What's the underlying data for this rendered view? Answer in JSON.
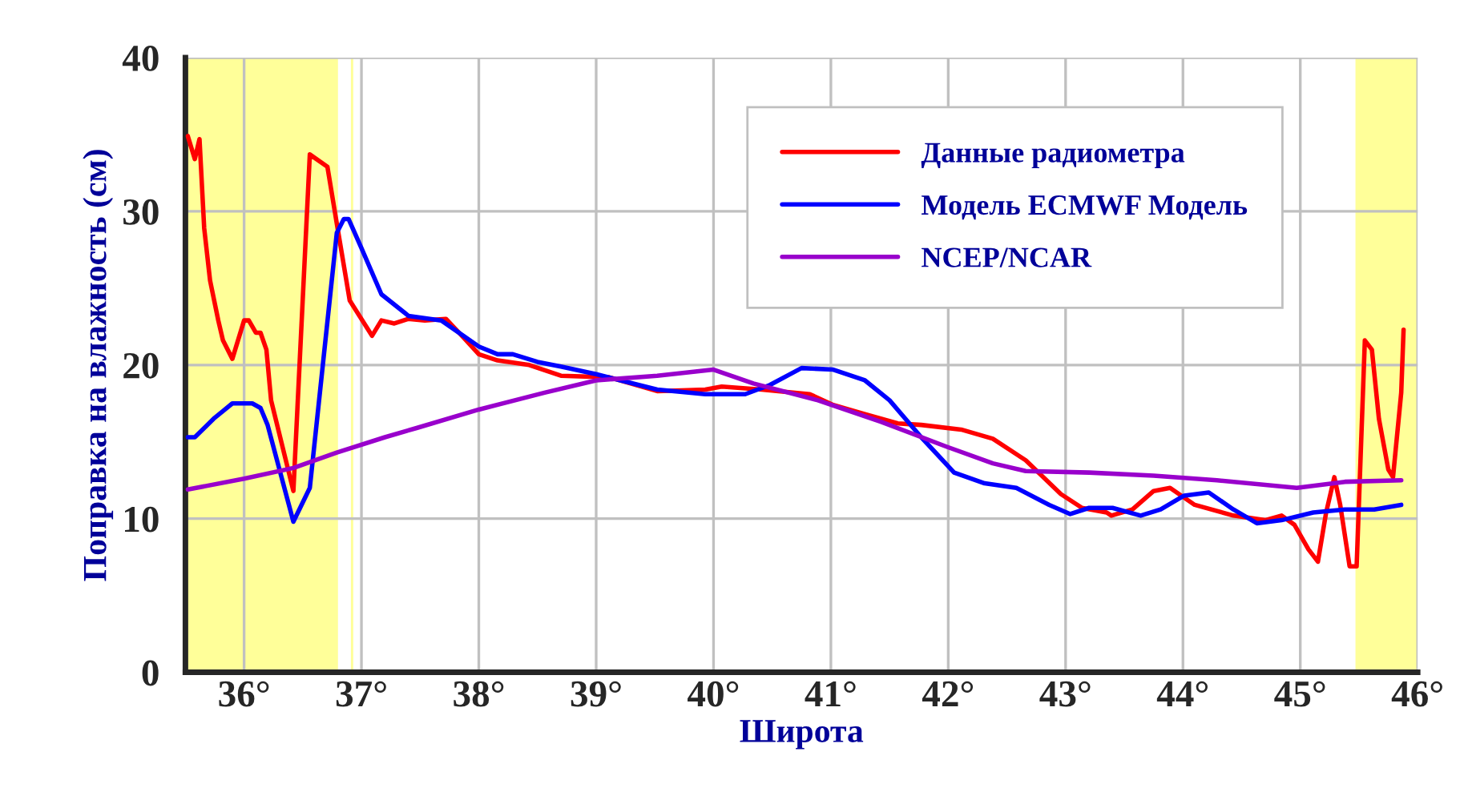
{
  "chart_data": {
    "type": "line",
    "xlabel": "Широта",
    "ylabel": "Поправка на влажность (см)",
    "xlim": [
      35.5,
      46
    ],
    "ylim": [
      0,
      40
    ],
    "xticks": [
      {
        "value": 36,
        "label": "36°"
      },
      {
        "value": 37,
        "label": "37°"
      },
      {
        "value": 38,
        "label": "38°"
      },
      {
        "value": 39,
        "label": "39°"
      },
      {
        "value": 40,
        "label": "40°"
      },
      {
        "value": 41,
        "label": "41°"
      },
      {
        "value": 42,
        "label": "42°"
      },
      {
        "value": 43,
        "label": "43°"
      },
      {
        "value": 44,
        "label": "44°"
      },
      {
        "value": 45,
        "label": "45°"
      },
      {
        "value": 46,
        "label": "46°"
      }
    ],
    "yticks": [
      0,
      10,
      20,
      30,
      40
    ],
    "grid": true,
    "legend": "top right",
    "marker": "none",
    "line_style": "solid",
    "bands": [
      {
        "axis": "x",
        "from": 35.5,
        "to": 36.8,
        "label": null,
        "color": "#ffff99"
      },
      {
        "axis": "x",
        "from": 36.91,
        "to": 36.93,
        "label": null,
        "color": "#ffff99"
      },
      {
        "axis": "x",
        "from": 45.47,
        "to": 46,
        "label": null,
        "color": "#ffff99"
      }
    ],
    "series": [
      {
        "name": "Данные радиометра",
        "color": "#ff0000",
        "x": [
          35.52,
          35.58,
          35.62,
          35.66,
          35.71,
          35.78,
          35.82,
          35.9,
          36.0,
          36.04,
          36.1,
          36.14,
          36.19,
          36.23,
          36.42,
          36.56,
          36.71,
          36.79,
          36.9,
          37.09,
          37.17,
          37.28,
          37.4,
          37.54,
          37.72,
          37.88,
          38.0,
          38.16,
          38.43,
          38.7,
          39.11,
          39.52,
          39.93,
          40.07,
          40.41,
          40.82,
          41.02,
          41.29,
          41.57,
          41.77,
          42.11,
          42.38,
          42.66,
          42.96,
          43.14,
          43.35,
          43.39,
          43.57,
          43.75,
          43.89,
          44.1,
          44.43,
          44.7,
          44.84,
          44.95,
          45.07,
          45.15,
          45.22,
          45.29,
          45.34,
          45.42,
          45.48,
          45.55,
          45.61,
          45.67,
          45.75,
          45.79,
          45.86,
          45.88
        ],
        "values": [
          34.9,
          33.4,
          34.7,
          28.9,
          25.5,
          22.9,
          21.6,
          20.4,
          22.9,
          22.9,
          22.1,
          22.1,
          21.0,
          17.7,
          11.8,
          33.7,
          32.9,
          29.2,
          24.2,
          21.9,
          22.9,
          22.7,
          23.0,
          22.9,
          23.0,
          21.7,
          20.7,
          20.3,
          20.0,
          19.3,
          19.2,
          18.3,
          18.4,
          18.6,
          18.4,
          18.1,
          17.4,
          16.8,
          16.2,
          16.1,
          15.8,
          15.2,
          13.8,
          11.6,
          10.7,
          10.4,
          10.2,
          10.6,
          11.8,
          12.0,
          10.9,
          10.2,
          9.9,
          10.2,
          9.6,
          8.0,
          7.2,
          10.4,
          12.7,
          10.9,
          6.9,
          6.9,
          21.6,
          21.0,
          16.5,
          13.2,
          12.7,
          18.2,
          22.3
        ]
      },
      {
        "name": "Модель ECMWF Модель",
        "color": "#0000ff",
        "x": [
          35.52,
          35.58,
          35.74,
          35.9,
          36.07,
          36.14,
          36.2,
          36.42,
          36.56,
          36.79,
          36.85,
          36.89,
          37.0,
          37.17,
          37.4,
          37.68,
          38.0,
          38.16,
          38.29,
          38.5,
          38.7,
          39.0,
          39.52,
          39.93,
          40.27,
          40.48,
          40.75,
          41.02,
          41.29,
          41.5,
          41.77,
          42.05,
          42.31,
          42.58,
          42.86,
          43.04,
          43.2,
          43.4,
          43.64,
          43.81,
          44.01,
          44.22,
          44.43,
          44.63,
          44.84,
          45.11,
          45.38,
          45.63,
          45.86
        ],
        "values": [
          15.3,
          15.3,
          16.5,
          17.5,
          17.5,
          17.2,
          16.1,
          9.8,
          12.0,
          28.6,
          29.5,
          29.5,
          27.6,
          24.6,
          23.2,
          22.9,
          21.2,
          20.7,
          20.7,
          20.2,
          19.9,
          19.4,
          18.4,
          18.1,
          18.1,
          18.7,
          19.8,
          19.7,
          19.0,
          17.7,
          15.3,
          13.0,
          12.3,
          12.0,
          10.9,
          10.3,
          10.7,
          10.7,
          10.2,
          10.6,
          11.5,
          11.7,
          10.6,
          9.7,
          9.9,
          10.4,
          10.6,
          10.6,
          10.9
        ]
      },
      {
        "name": "NCEP/NCAR",
        "color": "#9900cc",
        "x": [
          35.52,
          36.0,
          36.42,
          36.79,
          37.2,
          37.47,
          38.0,
          38.56,
          39.0,
          39.52,
          40.0,
          40.34,
          40.89,
          41.43,
          41.98,
          42.38,
          42.66,
          43.2,
          43.75,
          44.29,
          44.97,
          45.38,
          45.86
        ],
        "values": [
          11.9,
          12.6,
          13.3,
          14.3,
          15.3,
          15.9,
          17.1,
          18.2,
          19.0,
          19.3,
          19.7,
          18.8,
          17.7,
          16.3,
          14.7,
          13.6,
          13.1,
          13.0,
          12.8,
          12.5,
          12.0,
          12.4,
          12.5
        ]
      }
    ]
  }
}
